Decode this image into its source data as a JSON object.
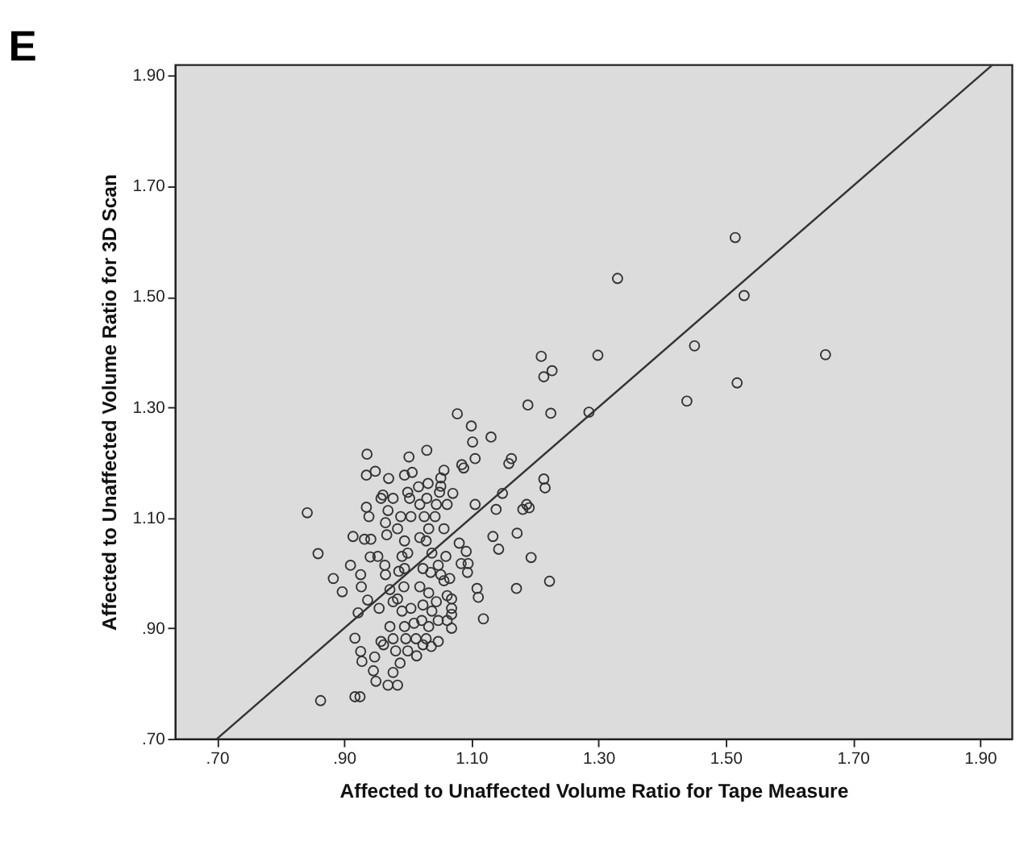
{
  "chart_data": {
    "type": "scatter",
    "title": "E",
    "xlabel": "Affected to Unaffected Volume Ratio for Tape Measure",
    "ylabel": "Affected to Unaffected Volume Ratio for 3D Scan",
    "xlim": [
      0.634,
      1.95
    ],
    "ylim": [
      0.7,
      1.92
    ],
    "xticks": [
      {
        "value": 0.7,
        "label": ".70"
      },
      {
        "value": 0.9,
        "label": ".90"
      },
      {
        "value": 1.1,
        "label": "1.10"
      },
      {
        "value": 1.3,
        "label": "1.30"
      },
      {
        "value": 1.5,
        "label": "1.50"
      },
      {
        "value": 1.7,
        "label": "1.70"
      },
      {
        "value": 1.9,
        "label": "1.90"
      }
    ],
    "yticks": [
      {
        "value": 0.7,
        "label": ".70"
      },
      {
        "value": 0.9,
        "label": ".90"
      },
      {
        "value": 1.1,
        "label": "1.10"
      },
      {
        "value": 1.3,
        "label": "1.30"
      },
      {
        "value": 1.5,
        "label": "1.50"
      },
      {
        "value": 1.7,
        "label": "1.70"
      },
      {
        "value": 1.9,
        "label": "1.90"
      }
    ],
    "series": [
      {
        "marker": "circle",
        "color": "#333333",
        "x": [
          0.842,
          0.859,
          0.883,
          0.897,
          0.863,
          0.917,
          0.925,
          0.91,
          0.914,
          0.922,
          0.917,
          0.926,
          0.928,
          0.926,
          0.927,
          0.936,
          0.935,
          0.949,
          0.935,
          0.939,
          0.932,
          0.942,
          0.941,
          0.937,
          0.948,
          0.946,
          0.95,
          0.969,
          0.984,
          0.977,
          0.953,
          0.955,
          0.958,
          0.962,
          0.961,
          0.958,
          0.97,
          0.969,
          0.977,
          0.965,
          0.967,
          0.964,
          0.965,
          0.972,
          0.977,
          0.972,
          0.977,
          0.981,
          0.988,
          0.995,
          1.002,
          1.007,
          1.0,
          1.003,
          0.989,
          1.005,
          0.984,
          0.995,
          0.991,
          1.0,
          0.986,
          0.995,
          0.994,
          0.984,
          0.991,
          1.005,
          0.995,
          1.01,
          0.997,
          1.013,
          1.0,
          1.014,
          1.03,
          1.017,
          1.032,
          1.03,
          1.019,
          1.026,
          1.033,
          1.019,
          1.038,
          1.029,
          1.024,
          1.036,
          1.019,
          1.033,
          1.024,
          1.038,
          1.022,
          1.033,
          1.029,
          1.024,
          1.037,
          1.048,
          1.052,
          1.052,
          1.05,
          1.057,
          1.045,
          1.043,
          1.062,
          1.057,
          1.06,
          1.048,
          1.052,
          1.057,
          1.066,
          1.062,
          1.069,
          1.069,
          1.069,
          1.062,
          1.069,
          1.045,
          1.048,
          1.071,
          1.078,
          1.081,
          1.085,
          1.088,
          1.084,
          1.095,
          1.094,
          1.092,
          1.1,
          1.102,
          1.106,
          1.106,
          1.109,
          1.111,
          1.119,
          1.131,
          1.134,
          1.139,
          1.143,
          1.149,
          1.159,
          1.163,
          1.172,
          1.171,
          1.181,
          1.187,
          1.191,
          1.189,
          1.194,
          1.21,
          1.214,
          1.227,
          1.225,
          1.214,
          1.216,
          1.223,
          1.285,
          1.299,
          1.33,
          1.439,
          1.451,
          1.515,
          1.518,
          1.529,
          1.657
        ],
        "values": [
          1.109,
          1.035,
          0.99,
          0.966,
          0.769,
          0.776,
          0.776,
          1.014,
          1.066,
          0.928,
          0.882,
          0.858,
          0.84,
          0.997,
          0.975,
          1.215,
          1.177,
          1.184,
          1.119,
          1.102,
          1.061,
          1.061,
          1.029,
          0.951,
          0.848,
          0.823,
          0.804,
          0.797,
          0.797,
          0.82,
          1.03,
          0.936,
          0.876,
          0.87,
          1.141,
          1.135,
          1.171,
          1.113,
          1.135,
          1.091,
          1.069,
          1.014,
          0.997,
          0.97,
          0.948,
          0.903,
          0.881,
          0.859,
          0.837,
          1.177,
          1.21,
          1.182,
          1.146,
          1.135,
          1.102,
          1.102,
          1.08,
          1.058,
          1.03,
          1.036,
          1.003,
          1.008,
          0.975,
          0.953,
          0.931,
          0.936,
          0.903,
          0.909,
          0.881,
          0.881,
          0.859,
          0.85,
          1.222,
          1.156,
          1.162,
          1.135,
          1.124,
          1.102,
          1.08,
          1.064,
          1.036,
          1.058,
          1.008,
          1.001,
          0.975,
          0.964,
          0.942,
          0.931,
          0.914,
          0.903,
          0.881,
          0.87,
          0.867,
          0.876,
          1.172,
          1.157,
          1.146,
          1.186,
          1.124,
          1.102,
          1.124,
          1.08,
          1.03,
          1.014,
          0.997,
          0.986,
          0.99,
          0.959,
          0.953,
          0.936,
          0.925,
          0.914,
          0.9,
          0.948,
          0.914,
          1.144,
          1.288,
          1.054,
          1.196,
          1.19,
          1.017,
          1.017,
          1.001,
          1.039,
          1.266,
          1.237,
          1.207,
          1.124,
          0.972,
          0.956,
          0.917,
          1.246,
          1.066,
          1.115,
          1.043,
          1.144,
          1.198,
          1.207,
          1.072,
          0.972,
          1.115,
          1.124,
          1.118,
          1.304,
          1.028,
          1.392,
          1.355,
          1.366,
          1.289,
          1.17,
          1.154,
          0.985,
          1.291,
          1.394,
          1.533,
          1.311,
          1.411,
          1.607,
          1.344,
          1.502,
          1.395
        ]
      },
      {
        "type": "line",
        "color": "#333333",
        "x": [
          0.7,
          1.92
        ],
        "values": [
          0.7,
          1.92
        ]
      }
    ]
  }
}
